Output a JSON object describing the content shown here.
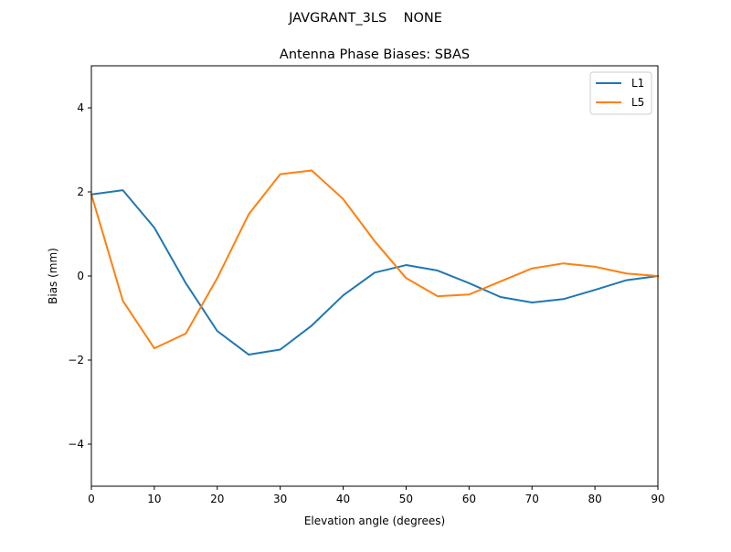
{
  "chart_data": {
    "type": "line",
    "suptitle": "JAVGRANT_3LS    NONE",
    "title": "Antenna Phase Biases: SBAS",
    "xlabel": "Elevation angle (degrees)",
    "ylabel": "Bias (mm)",
    "xlim": [
      0,
      90
    ],
    "ylim": [
      -5,
      5
    ],
    "xticks": [
      0,
      10,
      20,
      30,
      40,
      50,
      60,
      70,
      80,
      90
    ],
    "yticks": [
      -4,
      -2,
      0,
      2,
      4
    ],
    "ytick_labels": [
      "−4",
      "−2",
      "0",
      "2",
      "4"
    ],
    "grid": false,
    "legend_position": "top-right",
    "x": [
      0,
      5,
      10,
      15,
      20,
      25,
      30,
      35,
      40,
      45,
      50,
      55,
      60,
      65,
      70,
      75,
      80,
      85,
      90
    ],
    "series": [
      {
        "name": "L1",
        "color": "#1f77b4",
        "values": [
          1.94,
          2.04,
          1.15,
          -0.17,
          -1.31,
          -1.87,
          -1.75,
          -1.18,
          -0.46,
          0.08,
          0.26,
          0.13,
          -0.17,
          -0.5,
          -0.63,
          -0.55,
          -0.33,
          -0.1,
          0.0
        ]
      },
      {
        "name": "L5",
        "color": "#ff7f0e",
        "values": [
          1.94,
          -0.59,
          -1.72,
          -1.37,
          -0.05,
          1.47,
          2.42,
          2.51,
          1.83,
          0.83,
          -0.05,
          -0.48,
          -0.44,
          -0.13,
          0.18,
          0.3,
          0.22,
          0.06,
          0.0
        ]
      }
    ]
  }
}
